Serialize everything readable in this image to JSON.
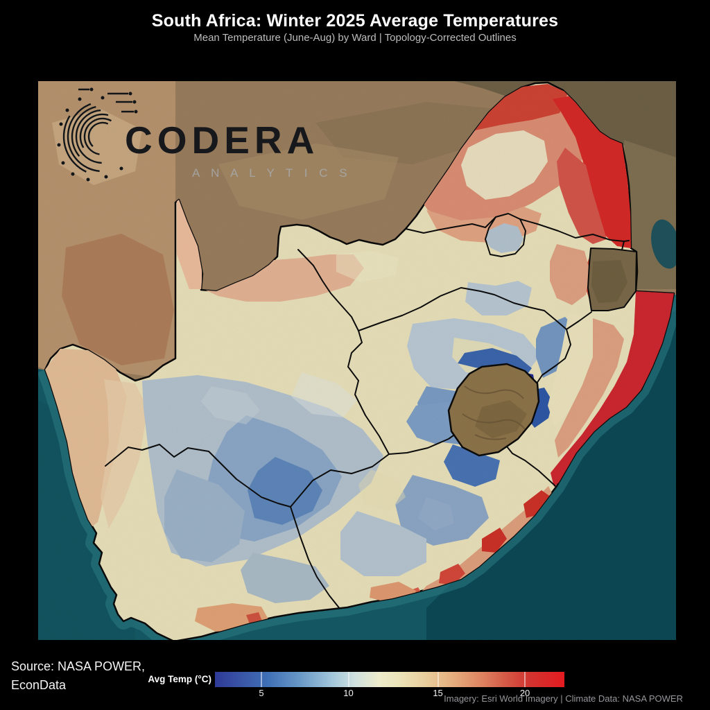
{
  "header": {
    "title": "South Africa: Winter 2025 Average Temperatures",
    "subtitle": "Mean Temperature (June-Aug) by Ward | Topology-Corrected Outlines"
  },
  "logo": {
    "text": "CODERA",
    "subtext": "A N A L Y T I C S"
  },
  "source": {
    "text": "Source: NASA POWER,\nEconData"
  },
  "legend": {
    "label": "Avg Temp (°C)",
    "ticks": [
      {
        "label": "5",
        "pct": 13.3
      },
      {
        "label": "10",
        "pct": 38.2
      },
      {
        "label": "15",
        "pct": 63.8
      },
      {
        "label": "20",
        "pct": 88.7
      }
    ],
    "range_min_c": 2.4,
    "range_max_c": 22.2,
    "gradient_stops": [
      [
        0,
        "#2e3a97"
      ],
      [
        7,
        "#3953a5"
      ],
      [
        15,
        "#3f6fb5"
      ],
      [
        24,
        "#6797c6"
      ],
      [
        33,
        "#9fc4da"
      ],
      [
        40,
        "#cfe0df"
      ],
      [
        47,
        "#eeeccb"
      ],
      [
        53,
        "#ece3b8"
      ],
      [
        60,
        "#e9cf9e"
      ],
      [
        68,
        "#e6ae7e"
      ],
      [
        76,
        "#de8562"
      ],
      [
        83,
        "#d55a47"
      ],
      [
        90,
        "#d23430"
      ],
      [
        100,
        "#e41b20"
      ]
    ]
  },
  "attribution": "Imagery: Esri World Imagery | Climate Data: NASA POWER",
  "chart_data": {
    "type": "heatmap",
    "subtype": "choropleth-map",
    "title": "South Africa: Winter 2025 Average Temperatures",
    "variable": "Mean Temperature (June-Aug) by Ward",
    "unit": "°C",
    "colorbar": {
      "tick_values": [
        5,
        10,
        15,
        20
      ],
      "approx_min": 2.4,
      "approx_max": 22.2,
      "scheme": "dark blue (cold) through cream to bright red (warm)"
    },
    "legend_position": "bottom-center",
    "visual_pattern": {
      "coolest_areas_c_approx": 3,
      "warmest_areas_c_approx": 22,
      "cool_blue_zones": "central interior plateau and mountains around the unshaded enclave",
      "warm_red_zones": "north-eastern lowveld strip and the eastern coastline",
      "neutral_cream_zones": "western half and south coast interior"
    }
  },
  "palette": {
    "background": "#000000",
    "ocean": "#155a66",
    "deep_ocean": "#0c4854",
    "terrain_brown": "#9a7d5e",
    "enclave_terrain": "#8d744a",
    "cold_ward": "#242f95",
    "cool_ward": "#5f87bb",
    "mild_ward": "#e9e1ba",
    "warm_ward": "#dfa182",
    "hot_ward": "#d62a28"
  }
}
